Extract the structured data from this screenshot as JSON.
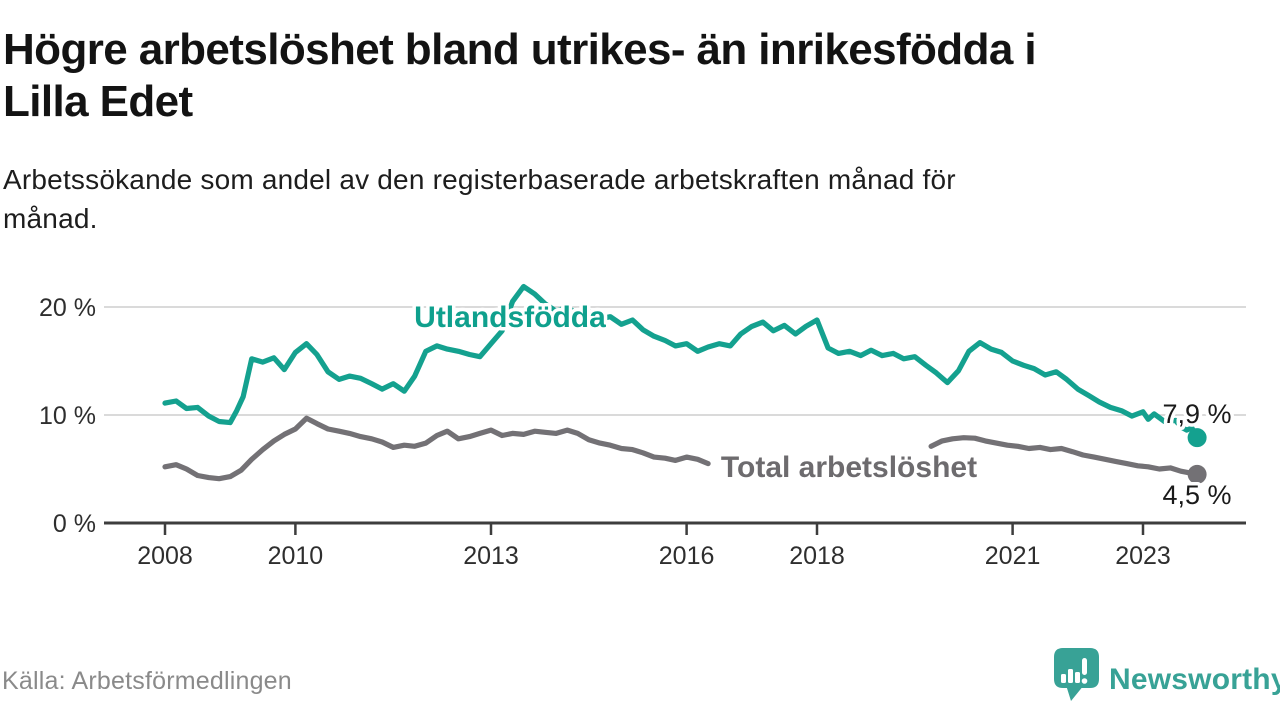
{
  "header": {
    "title_lines": [
      "Högre arbetslöshet bland utrikes- än inrikesfödda i",
      "Lilla Edet"
    ],
    "subtitle_lines": [
      "Arbetssökande som andel av den registerbaserade arbetskraften månad för",
      "månad."
    ]
  },
  "footer": {
    "source": "Källa: Arbetsförmedlingen",
    "brand": "Newsworthy"
  },
  "colors": {
    "foreign_line": "#14a18f",
    "foreign_label": "#0fa08d",
    "total_line": "#737175",
    "total_label": "#6d6b6e",
    "grid": "#dadada",
    "axis": "#3d3d3d",
    "tick_text": "#2e2e2e",
    "brand_teal": "#38a296"
  },
  "chart_data": {
    "type": "line",
    "unit": "%",
    "x_ticks": [
      2008,
      2010,
      2013,
      2016,
      2018,
      2021,
      2023
    ],
    "x_tick_labels": [
      "2008",
      "2010",
      "2013",
      "2016",
      "2018",
      "2021",
      "2023"
    ],
    "y_ticks": [
      0,
      10,
      20
    ],
    "y_tick_labels": [
      "0 %",
      "10 %",
      "20 %"
    ],
    "x_range": [
      2008,
      2023.9
    ],
    "y_range": [
      0,
      22
    ],
    "grid": "horizontal-only",
    "legend": "inline-labels",
    "series": [
      {
        "name": "Utlandsfödda",
        "color": "#14a18f",
        "end_label": "7,9 %",
        "end_value": 7.9,
        "segments": [
          [
            [
              2008.0,
              11.1
            ],
            [
              2008.17,
              11.3
            ],
            [
              2008.33,
              10.6
            ],
            [
              2008.5,
              10.7
            ],
            [
              2008.67,
              9.9
            ],
            [
              2008.83,
              9.4
            ],
            [
              2009.0,
              9.3
            ],
            [
              2009.1,
              10.4
            ],
            [
              2009.2,
              11.7
            ],
            [
              2009.33,
              15.2
            ],
            [
              2009.5,
              14.9
            ],
            [
              2009.67,
              15.3
            ],
            [
              2009.83,
              14.2
            ],
            [
              2010.0,
              15.8
            ],
            [
              2010.17,
              16.6
            ],
            [
              2010.33,
              15.6
            ],
            [
              2010.5,
              14.0
            ],
            [
              2010.67,
              13.3
            ],
            [
              2010.83,
              13.6
            ],
            [
              2011.0,
              13.4
            ],
            [
              2011.17,
              12.9
            ],
            [
              2011.33,
              12.4
            ],
            [
              2011.5,
              12.9
            ],
            [
              2011.67,
              12.2
            ],
            [
              2011.83,
              13.6
            ],
            [
              2012.0,
              15.9
            ],
            [
              2012.17,
              16.4
            ],
            [
              2012.33,
              16.1
            ],
            [
              2012.5,
              15.9
            ],
            [
              2012.67,
              15.6
            ],
            [
              2012.83,
              15.4
            ],
            [
              2013.0,
              16.6
            ],
            [
              2013.17,
              17.8
            ],
            [
              2013.33,
              20.5
            ],
            [
              2013.5,
              21.9
            ],
            [
              2013.67,
              21.2
            ],
            [
              2013.83,
              20.3
            ],
            [
              2014.0,
              19.6
            ],
            [
              2014.17,
              20.0
            ],
            [
              2014.33,
              19.3
            ],
            [
              2014.5,
              19.6
            ],
            [
              2014.67,
              18.9
            ],
            [
              2014.83,
              19.1
            ],
            [
              2015.0,
              18.4
            ],
            [
              2015.17,
              18.8
            ],
            [
              2015.33,
              17.9
            ],
            [
              2015.5,
              17.3
            ],
            [
              2015.67,
              16.9
            ],
            [
              2015.83,
              16.4
            ],
            [
              2016.0,
              16.6
            ],
            [
              2016.17,
              15.9
            ],
            [
              2016.33,
              16.3
            ],
            [
              2016.5,
              16.6
            ],
            [
              2016.67,
              16.4
            ],
            [
              2016.83,
              17.5
            ],
            [
              2017.0,
              18.2
            ],
            [
              2017.17,
              18.6
            ],
            [
              2017.33,
              17.8
            ],
            [
              2017.5,
              18.3
            ],
            [
              2017.67,
              17.5
            ],
            [
              2017.83,
              18.2
            ],
            [
              2018.0,
              18.8
            ],
            [
              2018.17,
              16.2
            ],
            [
              2018.33,
              15.7
            ],
            [
              2018.5,
              15.9
            ],
            [
              2018.67,
              15.5
            ],
            [
              2018.83,
              16.0
            ],
            [
              2019.0,
              15.5
            ],
            [
              2019.17,
              15.7
            ],
            [
              2019.33,
              15.2
            ],
            [
              2019.5,
              15.4
            ],
            [
              2019.67,
              14.6
            ],
            [
              2019.83,
              13.9
            ],
            [
              2020.0,
              13.0
            ],
            [
              2020.17,
              14.1
            ],
            [
              2020.33,
              15.9
            ],
            [
              2020.5,
              16.7
            ],
            [
              2020.67,
              16.1
            ],
            [
              2020.83,
              15.8
            ],
            [
              2021.0,
              15.0
            ],
            [
              2021.17,
              14.6
            ],
            [
              2021.33,
              14.3
            ],
            [
              2021.5,
              13.7
            ],
            [
              2021.67,
              14.0
            ],
            [
              2021.83,
              13.3
            ],
            [
              2022.0,
              12.4
            ],
            [
              2022.17,
              11.8
            ],
            [
              2022.33,
              11.2
            ],
            [
              2022.5,
              10.7
            ],
            [
              2022.67,
              10.4
            ],
            [
              2022.83,
              9.9
            ],
            [
              2023.0,
              10.3
            ],
            [
              2023.08,
              9.6
            ],
            [
              2023.17,
              10.1
            ],
            [
              2023.33,
              9.4
            ],
            [
              2023.5,
              9.5
            ],
            [
              2023.58,
              8.9
            ],
            [
              2023.67,
              8.6
            ],
            [
              2023.75,
              8.8
            ],
            [
              2023.83,
              7.9
            ]
          ]
        ]
      },
      {
        "name": "Total arbetslöshet",
        "color": "#737175",
        "end_label": "4,5 %",
        "end_value": 4.5,
        "segments": [
          [
            [
              2008.0,
              5.2
            ],
            [
              2008.17,
              5.4
            ],
            [
              2008.33,
              5.0
            ],
            [
              2008.5,
              4.4
            ],
            [
              2008.67,
              4.2
            ],
            [
              2008.83,
              4.1
            ],
            [
              2009.0,
              4.3
            ],
            [
              2009.17,
              4.9
            ],
            [
              2009.33,
              5.9
            ],
            [
              2009.5,
              6.8
            ],
            [
              2009.67,
              7.6
            ],
            [
              2009.83,
              8.2
            ],
            [
              2010.0,
              8.7
            ],
            [
              2010.17,
              9.7
            ],
            [
              2010.33,
              9.2
            ],
            [
              2010.5,
              8.7
            ],
            [
              2010.67,
              8.5
            ],
            [
              2010.83,
              8.3
            ],
            [
              2011.0,
              8.0
            ],
            [
              2011.17,
              7.8
            ],
            [
              2011.33,
              7.5
            ],
            [
              2011.5,
              7.0
            ],
            [
              2011.67,
              7.2
            ],
            [
              2011.83,
              7.1
            ],
            [
              2012.0,
              7.4
            ],
            [
              2012.17,
              8.1
            ],
            [
              2012.33,
              8.5
            ],
            [
              2012.5,
              7.8
            ],
            [
              2012.67,
              8.0
            ],
            [
              2012.83,
              8.3
            ],
            [
              2013.0,
              8.6
            ],
            [
              2013.17,
              8.1
            ],
            [
              2013.33,
              8.3
            ],
            [
              2013.5,
              8.2
            ],
            [
              2013.67,
              8.5
            ],
            [
              2013.83,
              8.4
            ],
            [
              2014.0,
              8.3
            ],
            [
              2014.17,
              8.6
            ],
            [
              2014.33,
              8.3
            ],
            [
              2014.5,
              7.7
            ],
            [
              2014.67,
              7.4
            ],
            [
              2014.83,
              7.2
            ],
            [
              2015.0,
              6.9
            ],
            [
              2015.17,
              6.8
            ],
            [
              2015.33,
              6.5
            ],
            [
              2015.5,
              6.1
            ],
            [
              2015.67,
              6.0
            ],
            [
              2015.83,
              5.8
            ],
            [
              2016.0,
              6.1
            ],
            [
              2016.17,
              5.9
            ],
            [
              2016.33,
              5.5
            ]
          ],
          [
            [
              2019.75,
              7.1
            ],
            [
              2019.92,
              7.6
            ],
            [
              2020.08,
              7.8
            ],
            [
              2020.25,
              7.9
            ],
            [
              2020.42,
              7.85
            ],
            [
              2020.58,
              7.6
            ],
            [
              2020.75,
              7.4
            ],
            [
              2020.92,
              7.2
            ],
            [
              2021.08,
              7.1
            ],
            [
              2021.25,
              6.9
            ],
            [
              2021.42,
              7.0
            ],
            [
              2021.58,
              6.8
            ],
            [
              2021.75,
              6.9
            ],
            [
              2021.92,
              6.6
            ],
            [
              2022.08,
              6.3
            ],
            [
              2022.25,
              6.1
            ],
            [
              2022.42,
              5.9
            ],
            [
              2022.58,
              5.7
            ],
            [
              2022.75,
              5.5
            ],
            [
              2022.92,
              5.3
            ],
            [
              2023.08,
              5.2
            ],
            [
              2023.25,
              5.0
            ],
            [
              2023.42,
              5.1
            ],
            [
              2023.58,
              4.8
            ],
            [
              2023.75,
              4.6
            ],
            [
              2023.83,
              4.5
            ]
          ]
        ]
      }
    ]
  }
}
